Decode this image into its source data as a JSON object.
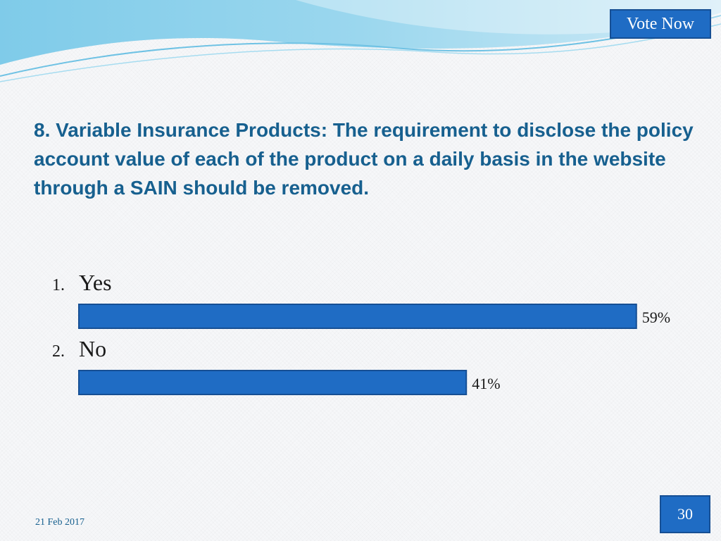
{
  "vote_button": {
    "label": "Vote Now"
  },
  "question": {
    "text": "8. Variable Insurance Products: The requirement to disclose the policy account value of each of the product on a daily basis in the website through a SAIN should be removed."
  },
  "chart_data": {
    "type": "bar",
    "orientation": "horizontal",
    "categories": [
      "Yes",
      "No"
    ],
    "numbers": [
      "1.",
      "2."
    ],
    "values": [
      59,
      41
    ],
    "value_labels": [
      "59%",
      "41%"
    ],
    "unit": "%",
    "xlim": [
      0,
      100
    ],
    "grid": false,
    "bar_color": "#1f6cc4"
  },
  "footer": {
    "date": "21 Feb 2017",
    "page_number": "30"
  },
  "colors": {
    "accent": "#1f6cc4",
    "title": "#17608f",
    "wave": "#5bb8e0"
  }
}
